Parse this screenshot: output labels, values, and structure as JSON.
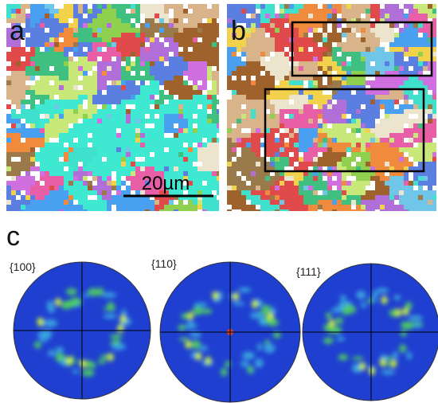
{
  "panel_a": {
    "label": "a",
    "scale_bar": "20µm"
  },
  "panel_b": {
    "label": "b"
  },
  "panel_c": {
    "label": "c",
    "pole_figures": [
      "{100}",
      "{110}",
      "{111}"
    ]
  }
}
